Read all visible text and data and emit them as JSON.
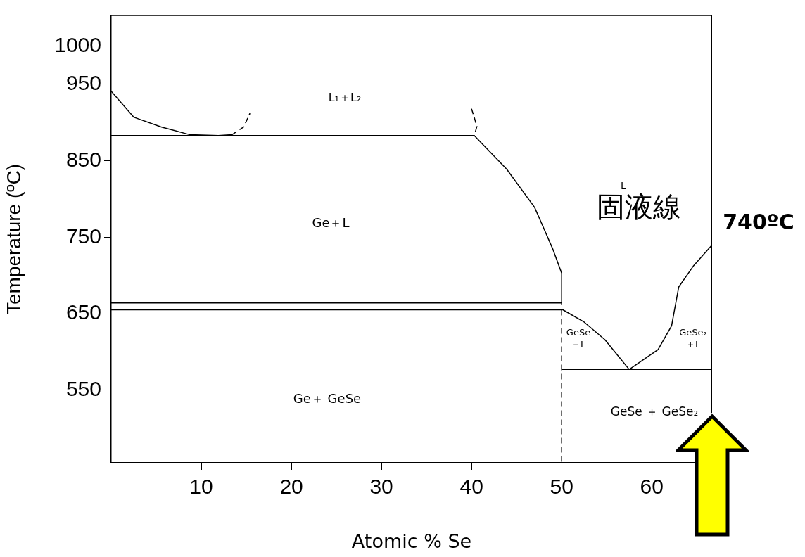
{
  "chart_data": {
    "type": "line",
    "xlabel": "Atomic % Se",
    "ylabel": "Temperature (ºC)",
    "xlim": [
      0,
      66.7
    ],
    "ylim": [
      455,
      1040
    ],
    "xticks": [
      10,
      20,
      30,
      40,
      50,
      60
    ],
    "yticks": [
      1000,
      950,
      850,
      750,
      650,
      550
    ],
    "grid": false,
    "legend": false,
    "marker": "none",
    "line_style": "solid",
    "series": [
      {
        "color": "#000000",
        "x": [
          0,
          40.3
        ],
        "values": [
          883,
          883
        ]
      },
      {
        "color": "#000000",
        "x": [
          0,
          2.5,
          5.6,
          8.75,
          11.9,
          13.4
        ],
        "values": [
          941,
          907,
          894,
          884,
          883,
          884
        ]
      },
      {
        "color": "#000000",
        "line_style": "dashed",
        "x": [
          13.4,
          14.7,
          15.4
        ],
        "values": [
          884,
          894,
          912
        ]
      },
      {
        "color": "#000000",
        "line_style": "dashed",
        "x": [
          40,
          40.6,
          40.3
        ],
        "values": [
          918,
          895,
          883
        ]
      },
      {
        "color": "#000000",
        "x": [
          40.3,
          43.9,
          47,
          49,
          50,
          50
        ],
        "values": [
          883,
          839,
          789,
          735,
          703,
          662
        ]
      },
      {
        "color": "#000000",
        "x": [
          0,
          50
        ],
        "values": [
          664,
          664
        ]
      },
      {
        "color": "#000000",
        "x": [
          0,
          50
        ],
        "values": [
          655,
          655
        ]
      },
      {
        "color": "#000000",
        "line_style": "dashed",
        "x": [
          50,
          50
        ],
        "values": [
          655,
          455
        ]
      },
      {
        "color": "#000000",
        "x": [
          50,
          52.5,
          54.8,
          57.5
        ],
        "values": [
          656,
          639,
          616,
          577
        ]
      },
      {
        "color": "#000000",
        "x": [
          57.5,
          60.7,
          62.2,
          63,
          64.6,
          66.7
        ],
        "values": [
          577,
          603,
          634,
          685,
          712,
          740
        ]
      },
      {
        "color": "#000000",
        "x": [
          50,
          66.7
        ],
        "values": [
          577,
          577
        ]
      },
      {
        "color": "#000000",
        "x": [
          66.7,
          66.7
        ],
        "values": [
          520,
          1040
        ]
      }
    ],
    "annotations": [
      "L₁＋L₂",
      "Ge＋L",
      "Ge＋ GeSe",
      "GeSe\n＋L",
      "GeSe₂\n＋L",
      "GeSe ＋ GeSe₂",
      "L",
      "固液線",
      {
        "text": "740ºC",
        "x": 66.7,
        "y": 740
      }
    ]
  }
}
